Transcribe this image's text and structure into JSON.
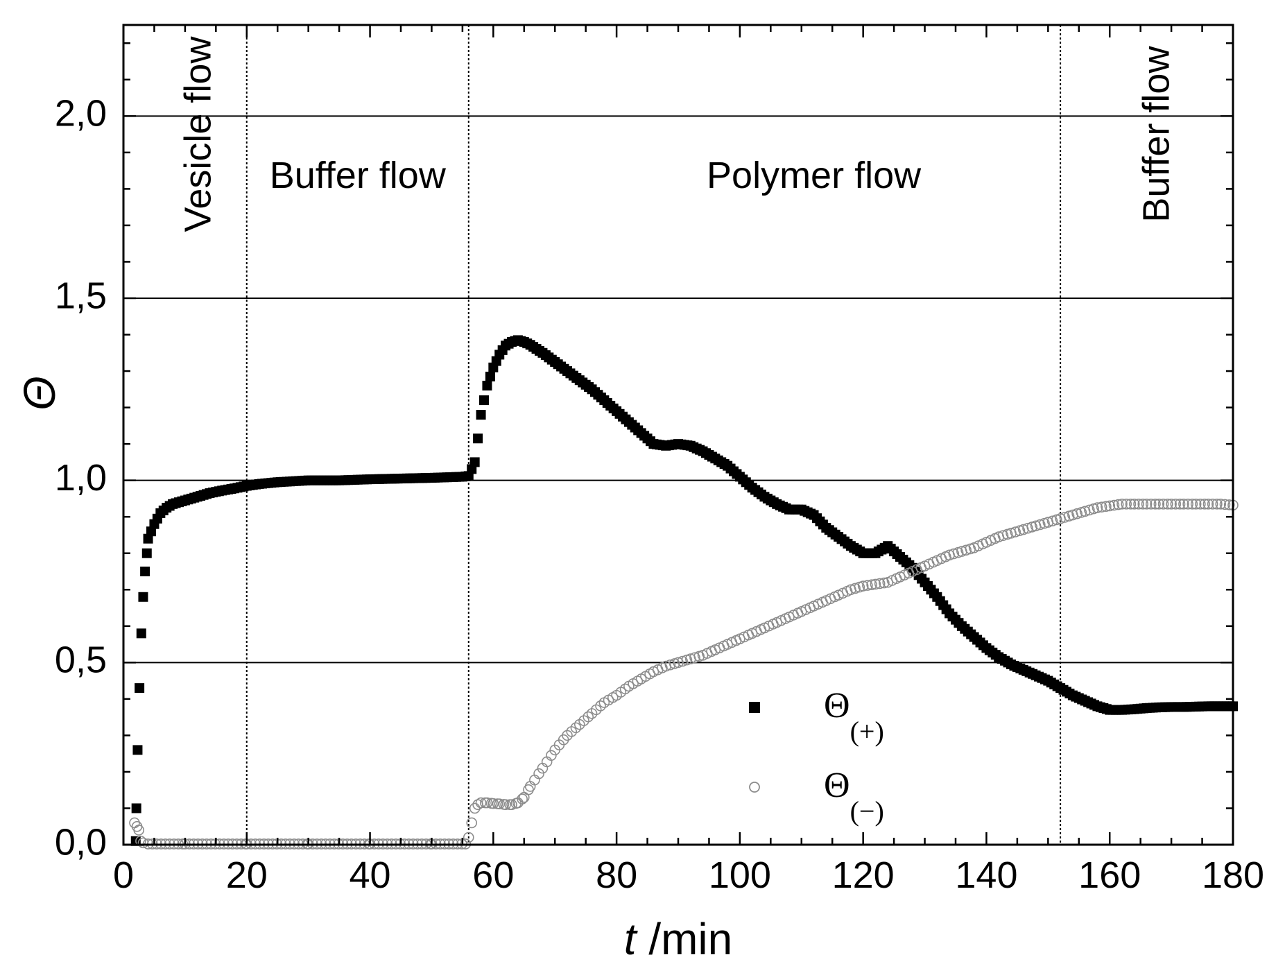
{
  "chart_data": {
    "type": "scatter",
    "title": "",
    "xlabel": {
      "symbol": "t",
      "unit": " /min"
    },
    "ylabel": "Θ",
    "xlim": [
      0,
      180
    ],
    "ylim": [
      0,
      2.25
    ],
    "grid": "horizontal at major ticks",
    "x_ticks": [
      0,
      20,
      40,
      60,
      80,
      100,
      120,
      140,
      160,
      180
    ],
    "x_tick_labels": [
      "0",
      "20",
      "40",
      "60",
      "80",
      "100",
      "120",
      "140",
      "160",
      "180"
    ],
    "y_ticks": [
      0,
      0.5,
      1.0,
      1.5,
      2.0
    ],
    "y_tick_labels": [
      "0,0",
      "0,5",
      "1,0",
      "1,5",
      "2,0"
    ],
    "phase_boundaries": [
      20,
      56,
      152
    ],
    "phases": [
      {
        "label": "Vesicle flow",
        "x": 12.5,
        "y": 1.95,
        "orientation": "vertical"
      },
      {
        "label": "Buffer flow",
        "x": 38,
        "y": 1.83,
        "orientation": "horizontal"
      },
      {
        "label": "Polymer flow",
        "x": 112,
        "y": 1.83,
        "orientation": "horizontal"
      },
      {
        "label": "Buffer flow",
        "x": 168,
        "y": 1.95,
        "orientation": "vertical"
      }
    ],
    "legend": {
      "placement": "bottom-center",
      "entries": [
        {
          "symbol": "Θ",
          "subscript": "(+)",
          "marker": "filled-square",
          "color": "#000000"
        },
        {
          "symbol": "Θ",
          "subscript": "(−)",
          "marker": "open-circle",
          "color": "#8c8c8c"
        }
      ]
    },
    "series": [
      {
        "name": "Θ(+)",
        "marker": "filled-square",
        "color": "#000000",
        "early_points": [
          [
            2,
            0.01
          ],
          [
            2.1,
            0.1
          ],
          [
            2.3,
            0.26
          ],
          [
            2.6,
            0.43
          ],
          [
            2.9,
            0.58
          ],
          [
            3.2,
            0.68
          ],
          [
            3.5,
            0.75
          ],
          [
            3.8,
            0.8
          ]
        ],
        "step": 0.5,
        "x": [
          4,
          5,
          6,
          7,
          8,
          10,
          12,
          14,
          16,
          18,
          20,
          22,
          25,
          30,
          35,
          40,
          45,
          50,
          55,
          56,
          57,
          58,
          59,
          60,
          61,
          62,
          63,
          64,
          65,
          66,
          68,
          70,
          72,
          74,
          76,
          78,
          80,
          82,
          84,
          86,
          88,
          90,
          92,
          94,
          96,
          98,
          100,
          102,
          104,
          106,
          108,
          110,
          112,
          114,
          116,
          118,
          120,
          122,
          124,
          126,
          128,
          130,
          132,
          134,
          136,
          138,
          140,
          142,
          144,
          146,
          148,
          150,
          152,
          154,
          156,
          158,
          160,
          162,
          164,
          166,
          168,
          170,
          172,
          174,
          176,
          178,
          180
        ],
        "y": [
          0.84,
          0.88,
          0.91,
          0.925,
          0.935,
          0.945,
          0.955,
          0.965,
          0.972,
          0.978,
          0.985,
          0.99,
          0.995,
          1.0,
          1.0,
          1.003,
          1.005,
          1.007,
          1.01,
          1.012,
          1.05,
          1.18,
          1.26,
          1.31,
          1.345,
          1.37,
          1.38,
          1.385,
          1.38,
          1.372,
          1.35,
          1.325,
          1.3,
          1.275,
          1.25,
          1.22,
          1.19,
          1.16,
          1.13,
          1.1,
          1.095,
          1.1,
          1.095,
          1.08,
          1.06,
          1.04,
          1.01,
          0.98,
          0.955,
          0.935,
          0.92,
          0.92,
          0.905,
          0.87,
          0.845,
          0.82,
          0.8,
          0.8,
          0.82,
          0.79,
          0.76,
          0.72,
          0.68,
          0.635,
          0.6,
          0.57,
          0.54,
          0.515,
          0.495,
          0.48,
          0.465,
          0.45,
          0.43,
          0.41,
          0.395,
          0.38,
          0.37,
          0.37,
          0.372,
          0.375,
          0.377,
          0.378,
          0.378,
          0.379,
          0.38,
          0.38,
          0.38
        ]
      },
      {
        "name": "Θ(−)",
        "marker": "open-circle",
        "color": "#8c8c8c",
        "early_points": [
          [
            1.8,
            0.06
          ],
          [
            2.2,
            0.05
          ],
          [
            2.5,
            0.04
          ],
          [
            2.8,
            0.01
          ],
          [
            3.2,
            0.005
          ]
        ],
        "step": 0.7,
        "x": [
          4,
          10,
          20,
          30,
          40,
          50,
          55.5,
          56,
          56.5,
          57,
          57.5,
          58,
          59,
          60,
          61,
          62,
          63,
          64,
          65,
          66,
          68,
          70,
          72,
          74,
          76,
          78,
          80,
          82,
          84,
          86,
          88,
          90,
          92,
          94,
          96,
          98,
          100,
          102,
          104,
          106,
          108,
          110,
          112,
          114,
          116,
          118,
          120,
          122,
          124,
          126,
          128,
          130,
          132,
          134,
          136,
          138,
          140,
          142,
          144,
          146,
          148,
          150,
          152,
          154,
          156,
          158,
          160,
          162,
          164,
          166,
          168,
          170,
          172,
          174,
          176,
          178,
          180
        ],
        "y": [
          0.002,
          0.002,
          0.002,
          0.002,
          0.002,
          0.002,
          0.002,
          0.02,
          0.06,
          0.1,
          0.11,
          0.115,
          0.115,
          0.113,
          0.112,
          0.11,
          0.11,
          0.115,
          0.13,
          0.16,
          0.21,
          0.26,
          0.3,
          0.33,
          0.36,
          0.39,
          0.41,
          0.435,
          0.455,
          0.475,
          0.49,
          0.5,
          0.51,
          0.52,
          0.535,
          0.55,
          0.565,
          0.58,
          0.595,
          0.61,
          0.625,
          0.64,
          0.655,
          0.67,
          0.685,
          0.7,
          0.71,
          0.715,
          0.72,
          0.735,
          0.75,
          0.765,
          0.78,
          0.795,
          0.805,
          0.815,
          0.83,
          0.845,
          0.855,
          0.865,
          0.875,
          0.885,
          0.895,
          0.905,
          0.915,
          0.925,
          0.93,
          0.935,
          0.935,
          0.935,
          0.935,
          0.935,
          0.935,
          0.935,
          0.935,
          0.935,
          0.932
        ]
      }
    ]
  }
}
